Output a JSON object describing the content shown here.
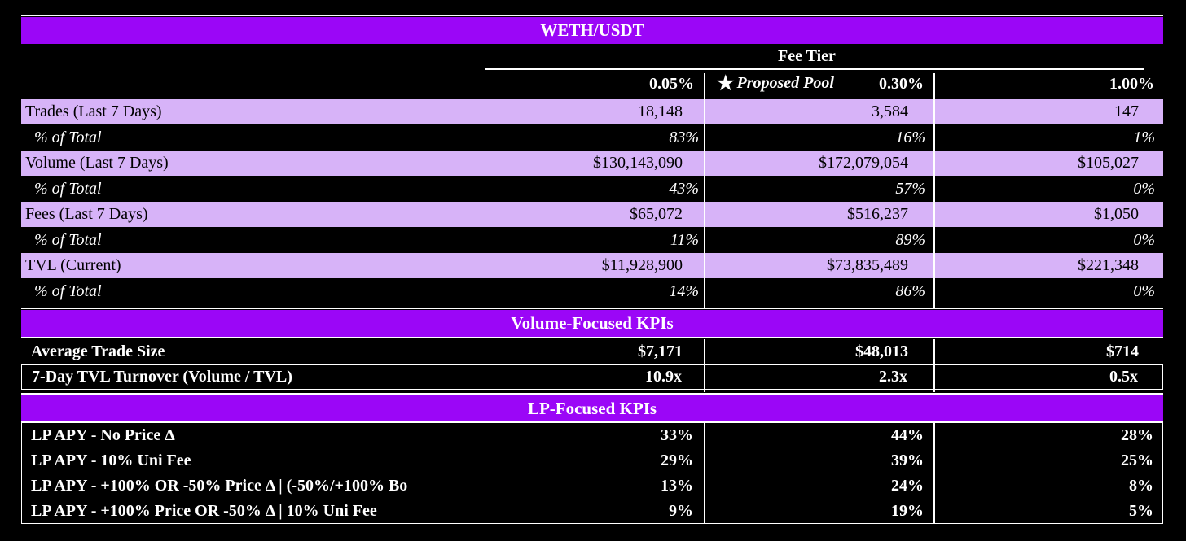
{
  "title": "WETH/USDT",
  "fee_tier_label": "Fee Tier",
  "columns": {
    "c1": "0.05%",
    "proposed_star": "★",
    "proposed_label": "Proposed Pool",
    "c2": "0.30%",
    "c3": "1.00%"
  },
  "rows": [
    {
      "label": "Trades (Last 7 Days)",
      "v1": "18,148",
      "v2": "3,584",
      "v3": "147"
    },
    {
      "label": "% of Total",
      "v1": "83%",
      "v2": "16%",
      "v3": "1%"
    },
    {
      "label": "Volume (Last 7 Days)",
      "v1": "$130,143,090",
      "v2": "$172,079,054",
      "v3": "$105,027"
    },
    {
      "label": "% of Total",
      "v1": "43%",
      "v2": "57%",
      "v3": "0%"
    },
    {
      "label": "Fees (Last 7 Days)",
      "v1": "$65,072",
      "v2": "$516,237",
      "v3": "$1,050"
    },
    {
      "label": "% of Total",
      "v1": "11%",
      "v2": "89%",
      "v3": "0%"
    },
    {
      "label": "TVL (Current)",
      "v1": "$11,928,900",
      "v2": "$73,835,489",
      "v3": "$221,348"
    },
    {
      "label": "% of Total",
      "v1": "14%",
      "v2": "86%",
      "v3": "0%"
    }
  ],
  "volume_kpis": {
    "title": "Volume-Focused KPIs",
    "rows": [
      {
        "label": "Average Trade Size",
        "v1": "$7,171",
        "v2": "$48,013",
        "v3": "$714"
      },
      {
        "label": "7-Day TVL Turnover (Volume / TVL)",
        "v1": "10.9x",
        "v2": "2.3x",
        "v3": "0.5x"
      }
    ]
  },
  "lp_kpis": {
    "title": "LP-Focused KPIs",
    "rows": [
      {
        "label": "LP APY - No Price Δ",
        "v1": "33%",
        "v2": "44%",
        "v3": "28%"
      },
      {
        "label": "LP APY - 10% Uni Fee",
        "v1": "29%",
        "v2": "39%",
        "v3": "25%"
      },
      {
        "label": "LP APY - +100% OR -50% Price Δ | (-50%/+100% Bo",
        "v1": "13%",
        "v2": "24%",
        "v3": "8%"
      },
      {
        "label": "LP APY - +100% Price OR -50% Δ | 10% Uni Fee",
        "v1": "9%",
        "v2": "19%",
        "v3": "5%"
      }
    ]
  },
  "colors": {
    "band": "#9b06f7",
    "lavender": "#d7b3f8",
    "background": "#000000"
  }
}
